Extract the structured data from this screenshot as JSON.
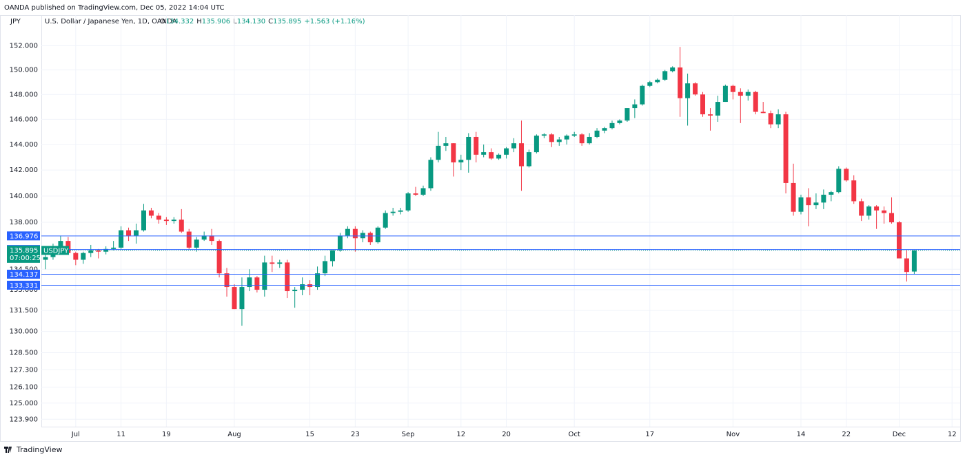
{
  "header": {
    "publisher": "OANDA published on TradingView.com, Dec 05, 2022 14:04 UTC",
    "footer": "TradingView"
  },
  "chart_data": {
    "type": "candlestick",
    "currency": "JPY",
    "title": "U.S. Dollar / Japanese Yen, 1D, OANDA",
    "legend_values": [
      "O",
      "134.332",
      "H",
      "135.906",
      "L",
      "134.130",
      "C",
      "135.895",
      "+1.563 (+1.16%)"
    ],
    "log_scale": true,
    "up_color": "#089981",
    "down_color": "#f23645",
    "level_color": "#2962ff",
    "ylim": [
      123.4,
      154.1
    ],
    "yticks": [
      {
        "value": 152,
        "label": "152.000"
      },
      {
        "value": 150,
        "label": "150.000"
      },
      {
        "value": 148,
        "label": "148.000"
      },
      {
        "value": 146,
        "label": "146.000"
      },
      {
        "value": 144,
        "label": "144.000"
      },
      {
        "value": 142,
        "label": "142.000"
      },
      {
        "value": 140,
        "label": "140.000"
      },
      {
        "value": 138,
        "label": "138.000"
      },
      {
        "value": 134.5,
        "label": "134.500"
      },
      {
        "value": 133,
        "label": "133.000"
      },
      {
        "value": 131.5,
        "label": "131.500"
      },
      {
        "value": 130,
        "label": "130.000"
      },
      {
        "value": 128.5,
        "label": "128.500"
      },
      {
        "value": 127.3,
        "label": "127.300"
      },
      {
        "value": 126.1,
        "label": "126.100"
      },
      {
        "value": 125,
        "label": "125.000"
      },
      {
        "value": 123.9,
        "label": "123.900"
      }
    ],
    "xticks": [
      {
        "value": "2022-07-01",
        "label": "Jul"
      },
      {
        "value": "2022-07-11",
        "label": "11"
      },
      {
        "value": "2022-07-19",
        "label": "19"
      },
      {
        "value": "2022-08-01",
        "label": "Aug"
      },
      {
        "value": "2022-08-15",
        "label": "15"
      },
      {
        "value": "2022-08-23",
        "label": "23"
      },
      {
        "value": "2022-09-01",
        "label": "Sep"
      },
      {
        "value": "2022-09-12",
        "label": "12"
      },
      {
        "value": "2022-09-20",
        "label": "20"
      },
      {
        "value": "2022-10-03",
        "label": "Oct"
      },
      {
        "value": "2022-10-17",
        "label": "17"
      },
      {
        "value": "2022-11-01",
        "label": "Nov"
      },
      {
        "value": "2022-11-14",
        "label": "14"
      },
      {
        "value": "2022-11-22",
        "label": "22"
      },
      {
        "value": "2022-12-01",
        "label": "Dec"
      },
      {
        "value": "2022-12-12",
        "label": "12"
      }
    ],
    "levels": [
      136.976,
      135.958,
      134.137,
      133.331
    ],
    "last_price": {
      "value": 135.895,
      "countdown": "07:00:25",
      "symbol": "USDJPY"
    },
    "x": [
      "2022-06-27",
      "2022-06-28",
      "2022-06-29",
      "2022-06-30",
      "2022-07-01",
      "2022-07-04",
      "2022-07-05",
      "2022-07-06",
      "2022-07-07",
      "2022-07-08",
      "2022-07-11",
      "2022-07-12",
      "2022-07-13",
      "2022-07-14",
      "2022-07-15",
      "2022-07-18",
      "2022-07-19",
      "2022-07-20",
      "2022-07-21",
      "2022-07-22",
      "2022-07-25",
      "2022-07-26",
      "2022-07-27",
      "2022-07-28",
      "2022-07-29",
      "2022-08-01",
      "2022-08-02",
      "2022-08-03",
      "2022-08-04",
      "2022-08-05",
      "2022-08-08",
      "2022-08-09",
      "2022-08-10",
      "2022-08-11",
      "2022-08-12",
      "2022-08-15",
      "2022-08-16",
      "2022-08-17",
      "2022-08-18",
      "2022-08-19",
      "2022-08-22",
      "2022-08-23",
      "2022-08-24",
      "2022-08-25",
      "2022-08-26",
      "2022-08-29",
      "2022-08-30",
      "2022-08-31",
      "2022-09-01",
      "2022-09-02",
      "2022-09-05",
      "2022-09-06",
      "2022-09-07",
      "2022-09-08",
      "2022-09-09",
      "2022-09-12",
      "2022-09-13",
      "2022-09-14",
      "2022-09-15",
      "2022-09-16",
      "2022-09-19",
      "2022-09-20",
      "2022-09-21",
      "2022-09-22",
      "2022-09-23",
      "2022-09-26",
      "2022-09-27",
      "2022-09-28",
      "2022-09-29",
      "2022-09-30",
      "2022-10-03",
      "2022-10-04",
      "2022-10-05",
      "2022-10-06",
      "2022-10-07",
      "2022-10-10",
      "2022-10-11",
      "2022-10-12",
      "2022-10-13",
      "2022-10-14",
      "2022-10-17",
      "2022-10-18",
      "2022-10-19",
      "2022-10-20",
      "2022-10-21",
      "2022-10-24",
      "2022-10-25",
      "2022-10-26",
      "2022-10-27",
      "2022-10-28",
      "2022-10-31",
      "2022-11-01",
      "2022-11-02",
      "2022-11-03",
      "2022-11-04",
      "2022-11-07",
      "2022-11-08",
      "2022-11-09",
      "2022-11-10",
      "2022-11-11",
      "2022-11-14",
      "2022-11-15",
      "2022-11-16",
      "2022-11-17",
      "2022-11-18",
      "2022-11-21",
      "2022-11-22",
      "2022-11-23",
      "2022-11-24",
      "2022-11-25",
      "2022-11-28",
      "2022-11-29",
      "2022-11-30",
      "2022-12-01",
      "2022-12-02",
      "2022-12-05"
    ],
    "ohlc": [
      [
        135.2,
        135.6,
        134.5,
        135.4
      ],
      [
        135.4,
        136.4,
        135.2,
        136.1
      ],
      [
        136.1,
        137.0,
        135.9,
        136.6
      ],
      [
        136.6,
        136.9,
        135.6,
        135.7
      ],
      [
        135.7,
        135.8,
        134.8,
        135.2
      ],
      [
        135.2,
        135.8,
        134.9,
        135.7
      ],
      [
        135.7,
        136.3,
        135.4,
        135.9
      ],
      [
        135.9,
        136.0,
        135.3,
        135.8
      ],
      [
        135.8,
        136.2,
        135.6,
        136.0
      ],
      [
        136.0,
        136.6,
        135.9,
        136.1
      ],
      [
        136.1,
        137.7,
        136.0,
        137.4
      ],
      [
        137.4,
        137.6,
        136.6,
        137.0
      ],
      [
        137.0,
        137.9,
        136.4,
        137.4
      ],
      [
        137.4,
        139.4,
        137.3,
        138.9
      ],
      [
        138.9,
        139.1,
        138.3,
        138.5
      ],
      [
        138.5,
        138.7,
        137.9,
        138.2
      ],
      [
        138.2,
        138.4,
        137.8,
        138.1
      ],
      [
        138.1,
        138.4,
        137.9,
        138.2
      ],
      [
        138.2,
        139.0,
        137.2,
        137.3
      ],
      [
        137.3,
        137.5,
        136.0,
        136.1
      ],
      [
        136.1,
        136.9,
        135.8,
        136.7
      ],
      [
        136.7,
        137.3,
        136.6,
        137.0
      ],
      [
        137.0,
        137.5,
        136.3,
        136.6
      ],
      [
        136.6,
        136.7,
        133.9,
        134.2
      ],
      [
        134.2,
        134.6,
        132.5,
        133.2
      ],
      [
        133.2,
        133.4,
        131.6,
        131.6
      ],
      [
        131.6,
        133.9,
        130.4,
        133.2
      ],
      [
        133.2,
        134.5,
        132.9,
        133.9
      ],
      [
        133.9,
        134.0,
        132.8,
        133.0
      ],
      [
        133.0,
        135.5,
        132.5,
        135.0
      ],
      [
        135.0,
        135.5,
        134.3,
        134.9
      ],
      [
        134.9,
        135.2,
        134.6,
        135.0
      ],
      [
        135.0,
        135.2,
        132.4,
        132.9
      ],
      [
        132.9,
        133.2,
        131.7,
        133.0
      ],
      [
        133.0,
        133.9,
        132.6,
        133.4
      ],
      [
        133.4,
        133.7,
        132.6,
        133.2
      ],
      [
        133.2,
        134.7,
        133.0,
        134.2
      ],
      [
        134.2,
        135.5,
        134.0,
        135.1
      ],
      [
        135.1,
        135.9,
        134.7,
        135.9
      ],
      [
        135.9,
        137.2,
        135.8,
        137.0
      ],
      [
        137.0,
        137.7,
        136.8,
        137.5
      ],
      [
        137.5,
        137.7,
        135.8,
        136.8
      ],
      [
        136.8,
        137.4,
        136.5,
        137.2
      ],
      [
        137.2,
        137.3,
        136.3,
        136.5
      ],
      [
        136.5,
        137.7,
        136.4,
        137.6
      ],
      [
        137.6,
        138.9,
        137.5,
        138.7
      ],
      [
        138.7,
        139.1,
        138.5,
        138.8
      ],
      [
        138.8,
        139.1,
        138.6,
        138.9
      ],
      [
        138.9,
        140.3,
        138.8,
        140.2
      ],
      [
        140.2,
        140.7,
        140.0,
        140.1
      ],
      [
        140.1,
        140.8,
        140.0,
        140.6
      ],
      [
        140.6,
        143.0,
        140.4,
        142.8
      ],
      [
        142.8,
        145.0,
        142.6,
        143.9
      ],
      [
        143.9,
        144.6,
        143.5,
        144.1
      ],
      [
        144.1,
        144.1,
        141.5,
        142.6
      ],
      [
        142.6,
        143.2,
        142.0,
        142.8
      ],
      [
        142.8,
        144.9,
        141.8,
        144.6
      ],
      [
        144.6,
        145.0,
        142.6,
        143.2
      ],
      [
        143.2,
        144.0,
        143.0,
        143.4
      ],
      [
        143.4,
        143.7,
        142.8,
        142.9
      ],
      [
        142.9,
        143.3,
        142.8,
        143.2
      ],
      [
        143.2,
        143.8,
        142.9,
        143.7
      ],
      [
        143.7,
        144.5,
        143.4,
        144.1
      ],
      [
        144.1,
        145.9,
        140.4,
        142.3
      ],
      [
        142.3,
        143.6,
        142.2,
        143.4
      ],
      [
        143.4,
        144.8,
        143.3,
        144.7
      ],
      [
        144.7,
        144.9,
        144.5,
        144.8
      ],
      [
        144.8,
        144.9,
        143.8,
        144.2
      ],
      [
        144.2,
        144.6,
        143.9,
        144.4
      ],
      [
        144.4,
        144.8,
        144.0,
        144.7
      ],
      [
        144.7,
        145.0,
        144.6,
        144.8
      ],
      [
        144.8,
        144.9,
        143.9,
        144.1
      ],
      [
        144.1,
        144.9,
        144.0,
        144.6
      ],
      [
        144.6,
        145.3,
        144.5,
        145.1
      ],
      [
        145.1,
        145.4,
        144.9,
        145.3
      ],
      [
        145.3,
        145.9,
        145.2,
        145.7
      ],
      [
        145.7,
        146.0,
        145.6,
        145.9
      ],
      [
        145.9,
        146.9,
        145.8,
        146.9
      ],
      [
        146.9,
        147.6,
        146.1,
        147.2
      ],
      [
        147.2,
        148.8,
        147.1,
        148.7
      ],
      [
        148.7,
        149.1,
        148.6,
        149.0
      ],
      [
        149.0,
        149.3,
        148.9,
        149.2
      ],
      [
        149.2,
        150.0,
        149.1,
        149.9
      ],
      [
        149.9,
        150.3,
        149.8,
        150.2
      ],
      [
        150.2,
        151.9,
        146.2,
        147.7
      ],
      [
        147.7,
        149.7,
        145.5,
        148.9
      ],
      [
        148.9,
        149.0,
        147.9,
        148.0
      ],
      [
        148.0,
        148.2,
        146.2,
        146.4
      ],
      [
        146.4,
        146.9,
        145.1,
        146.3
      ],
      [
        146.3,
        147.9,
        145.8,
        147.4
      ],
      [
        147.4,
        148.8,
        147.4,
        148.7
      ],
      [
        148.7,
        148.8,
        147.6,
        148.2
      ],
      [
        148.2,
        148.5,
        145.7,
        147.9
      ],
      [
        147.9,
        148.4,
        147.5,
        148.2
      ],
      [
        148.2,
        148.3,
        146.4,
        146.6
      ],
      [
        146.6,
        147.4,
        146.5,
        146.5
      ],
      [
        146.5,
        146.7,
        145.3,
        145.6
      ],
      [
        145.6,
        146.8,
        145.3,
        146.4
      ],
      [
        146.4,
        146.6,
        140.2,
        141.0
      ],
      [
        141.0,
        142.5,
        138.5,
        138.8
      ],
      [
        138.8,
        140.1,
        138.6,
        139.9
      ],
      [
        139.9,
        140.6,
        137.7,
        139.3
      ],
      [
        139.3,
        140.2,
        139.0,
        139.5
      ],
      [
        139.5,
        140.5,
        139.0,
        140.1
      ],
      [
        140.1,
        140.4,
        139.6,
        140.3
      ],
      [
        140.3,
        142.3,
        140.2,
        142.1
      ],
      [
        142.1,
        142.2,
        141.1,
        141.2
      ],
      [
        141.2,
        141.6,
        139.4,
        139.6
      ],
      [
        139.6,
        139.8,
        138.1,
        138.5
      ],
      [
        138.5,
        139.3,
        138.2,
        139.2
      ],
      [
        139.2,
        139.3,
        137.5,
        138.9
      ],
      [
        138.9,
        139.2,
        137.9,
        138.7
      ],
      [
        138.7,
        139.9,
        137.9,
        138.0
      ],
      [
        138.0,
        138.1,
        135.3,
        135.3
      ],
      [
        135.3,
        135.9,
        133.6,
        134.3
      ],
      [
        134.332,
        135.906,
        134.13,
        135.895
      ]
    ]
  }
}
